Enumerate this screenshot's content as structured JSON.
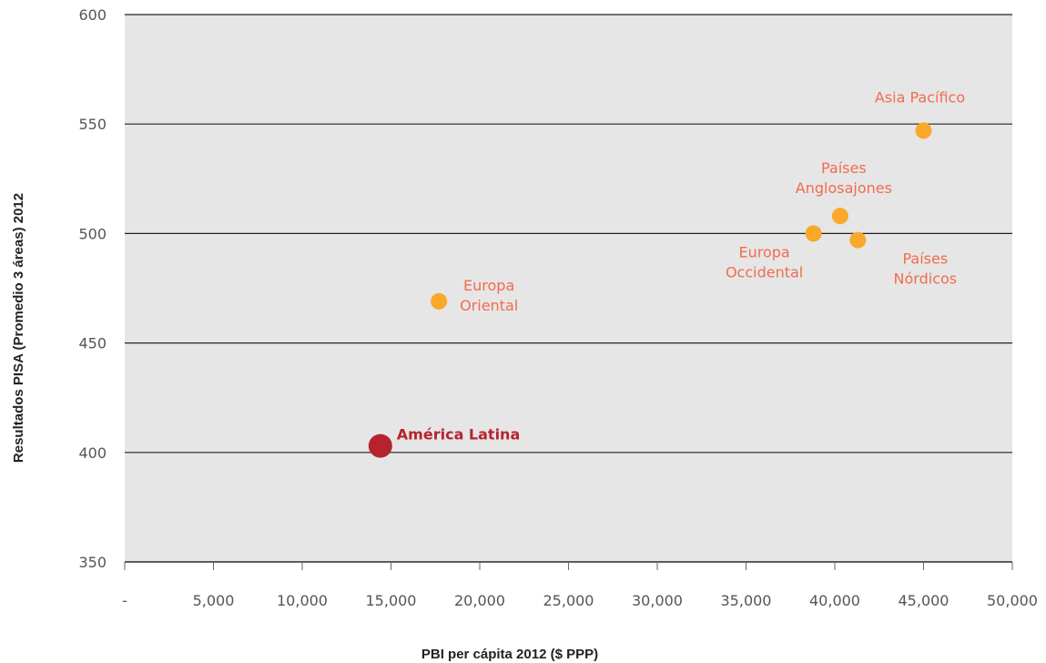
{
  "chart_data": {
    "type": "scatter",
    "title": "",
    "xlabel": "PBI per cápita 2012 ($ PPP)",
    "ylabel": "Resultados PISA (Promedio 3 áreas) 2012",
    "xlim": [
      0,
      50000
    ],
    "ylim": [
      350,
      600
    ],
    "x_ticks": [
      0,
      5000,
      10000,
      15000,
      20000,
      25000,
      30000,
      35000,
      40000,
      45000,
      50000
    ],
    "x_tick_labels": [
      "-",
      "5,000",
      "10,000",
      "15,000",
      "20,000",
      "25,000",
      "30,000",
      "35,000",
      "40,000",
      "45,000",
      "50,000"
    ],
    "y_ticks": [
      350,
      400,
      450,
      500,
      550,
      600
    ],
    "y_tick_labels": [
      "350",
      "400",
      "450",
      "500",
      "550",
      "600"
    ],
    "grid": "horizontal",
    "colors": {
      "background": "#e6e6e6",
      "gridline": "#222222",
      "highlight": "#b5232f",
      "point": "#f9a82a",
      "label": "#f26b4f"
    },
    "points": [
      {
        "label_lines": [
          "América Latina"
        ],
        "x": 14400,
        "y": 403,
        "highlight": true
      },
      {
        "label_lines": [
          "Europa",
          "Oriental"
        ],
        "x": 17700,
        "y": 469,
        "highlight": false
      },
      {
        "label_lines": [
          "Europa",
          "Occidental"
        ],
        "x": 38800,
        "y": 500,
        "highlight": false
      },
      {
        "label_lines": [
          "Países",
          "Anglosajones"
        ],
        "x": 40300,
        "y": 508,
        "highlight": false
      },
      {
        "label_lines": [
          "Países",
          "Nórdicos"
        ],
        "x": 41300,
        "y": 497,
        "highlight": false
      },
      {
        "label_lines": [
          "Asia Pacífico"
        ],
        "x": 45000,
        "y": 547,
        "highlight": false
      }
    ]
  }
}
